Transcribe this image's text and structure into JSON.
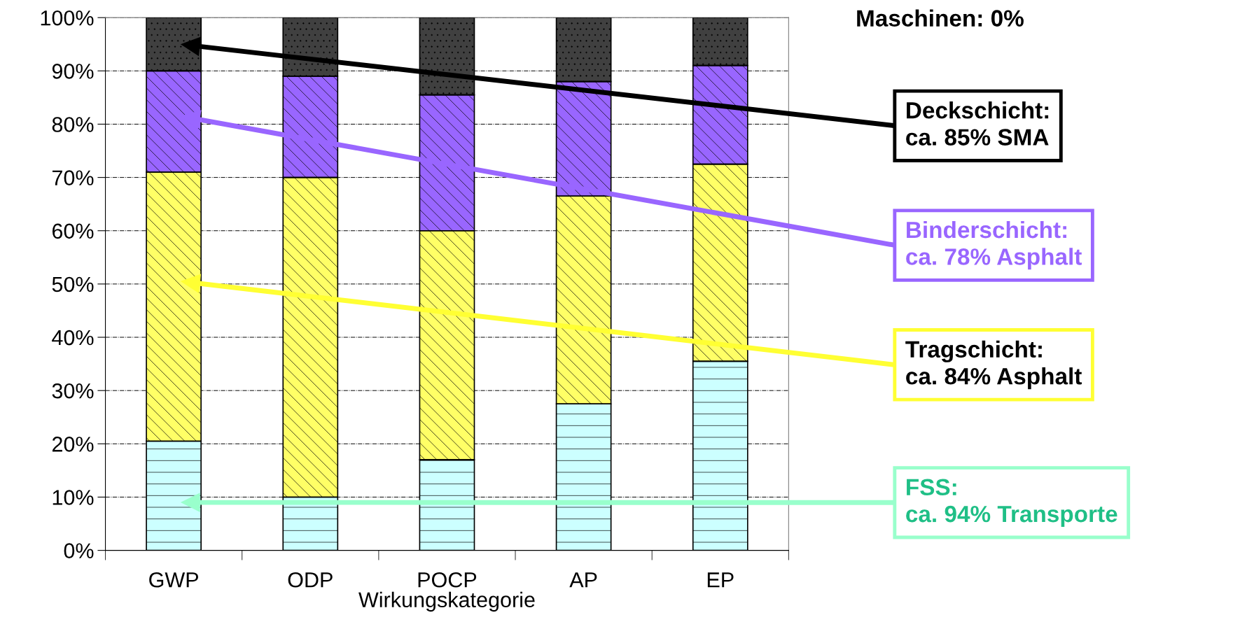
{
  "chart_data": {
    "type": "bar",
    "stacked": true,
    "xlabel": "Wirkungskategorie",
    "categories": [
      "GWP",
      "ODP",
      "POCP",
      "AP",
      "EP"
    ],
    "series": [
      {
        "color": "#ccffff",
        "values": [
          20.5,
          10,
          17,
          27.5,
          35.5
        ]
      },
      {
        "color": "#ffff66",
        "values": [
          50.5,
          60,
          43,
          39,
          37
        ]
      },
      {
        "color": "#9966ff",
        "values": [
          19,
          19,
          25.5,
          21.5,
          18.5
        ]
      },
      {
        "color": "#404040",
        "values": [
          10,
          11,
          14.5,
          12,
          9
        ]
      }
    ],
    "ylim": [
      0,
      100
    ],
    "yticks": [
      {
        "value": 0,
        "label": "0%"
      },
      {
        "value": 10,
        "label": "10%"
      },
      {
        "value": 20,
        "label": "20%"
      },
      {
        "value": 30,
        "label": "30%"
      },
      {
        "value": 40,
        "label": "40%"
      },
      {
        "value": 50,
        "label": "50%"
      },
      {
        "value": 60,
        "label": "60%"
      },
      {
        "value": 70,
        "label": "70%"
      },
      {
        "value": 80,
        "label": "80%"
      },
      {
        "value": 90,
        "label": "90%"
      },
      {
        "value": 100,
        "label": "100%"
      }
    ],
    "grid": "y",
    "legend": false,
    "annotations": [
      "Maschinen: 0%",
      "Deckschicht:\nca. 85% SMA",
      "Binderschicht:\nca. 78% Asphalt",
      "Tragschicht:\nca. 84% Asphalt",
      "FSS:\nca. 94% Transporte"
    ]
  }
}
